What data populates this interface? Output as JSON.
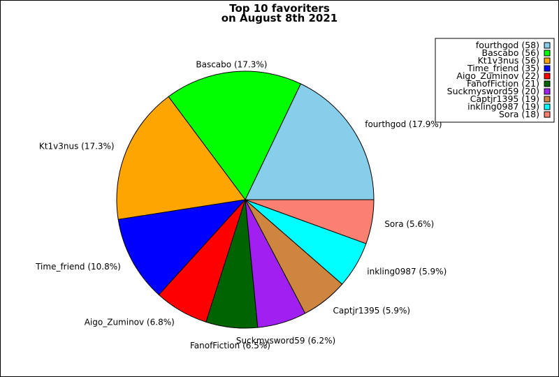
{
  "chart_data": {
    "type": "pie",
    "title": "Top 10 favoriters\non August 8th 2021",
    "title_lines": [
      "Top 10 favoriters",
      "on August 8th 2021"
    ],
    "categories": [
      "fourthgod",
      "Bascabo",
      "Kt1v3nus",
      "Time_friend",
      "Aigo_Zuminov",
      "FanofFiction",
      "Suckmysword59",
      "Captjr1395",
      "inkling0987",
      "Sora"
    ],
    "values": [
      58,
      56,
      56,
      35,
      22,
      21,
      20,
      19,
      19,
      18
    ],
    "slice_labels": [
      "fourthgod (17.9%)",
      "Bascabo (17.3%)",
      "Kt1v3nus (17.3%)",
      "Time_friend (10.8%)",
      "Aigo_Zuminov (6.8%)",
      "FanofFiction (6.5%)",
      "Suckmysword59 (6.2%)",
      "Captjr1395 (5.9%)",
      "inkling0987 (5.9%)",
      "Sora (5.6%)"
    ],
    "legend_entries": [
      "fourthgod (58)",
      "Bascabo (56)",
      "Kt1v3nus (56)",
      "Time_friend (35)",
      "Aigo_Zuminov (22)",
      "FanofFiction (21)",
      "Suckmysword59 (20)",
      "Captjr1395 (19)",
      "inkling0987 (19)",
      "Sora (18)"
    ],
    "colors": [
      "#87ceeb",
      "#00ff00",
      "#ffa500",
      "#0000ff",
      "#ff0000",
      "#006400",
      "#a020f0",
      "#cd853f",
      "#00ffff",
      "#fa8072"
    ],
    "start_angle_deg": 0,
    "direction": "counterclockwise",
    "legend_position": "top-right"
  }
}
